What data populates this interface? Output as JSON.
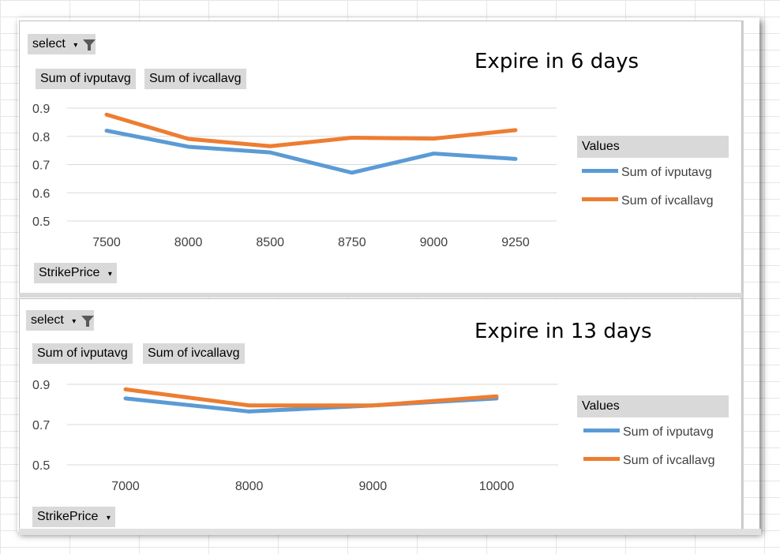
{
  "colors": {
    "series_put": "#5b9bd5",
    "series_call": "#ed7d31",
    "field_button_bg": "#d9d9d9"
  },
  "icons": {
    "filter": "filter-funnel-icon",
    "dropdown": "chevron-down-icon"
  },
  "charts": [
    {
      "select_label": "select",
      "series_button_put": "Sum of ivputavg",
      "series_button_call": "Sum of ivcallavg",
      "title": "Expire in 6 days",
      "axis_field": "StrikePrice",
      "legend_title": "Values",
      "legend_put": "Sum of ivputavg",
      "legend_call": "Sum of ivcallavg"
    },
    {
      "select_label": "select",
      "series_button_put": "Sum of ivputavg",
      "series_button_call": "Sum of ivcallavg",
      "title": "Expire in 13 days",
      "axis_field": "StrikePrice",
      "legend_title": "Values",
      "legend_put": "Sum of ivputavg",
      "legend_call": "Sum of ivcallavg"
    }
  ],
  "chart_data": [
    {
      "type": "line",
      "title": "Expire in 6 days",
      "xlabel": "StrikePrice",
      "ylabel": "",
      "categories": [
        "7500",
        "8000",
        "8500",
        "8750",
        "9000",
        "9250"
      ],
      "yticks": [
        "0.5",
        "0.6",
        "0.7",
        "0.8",
        "0.9"
      ],
      "ylim": [
        0.5,
        0.9
      ],
      "grid": true,
      "legend": "right",
      "series": [
        {
          "name": "Sum of ivputavg",
          "values": [
            0.82,
            0.763,
            0.743,
            0.671,
            0.739,
            0.72
          ]
        },
        {
          "name": "Sum of ivcallavg",
          "values": [
            0.877,
            0.791,
            0.765,
            0.795,
            0.792,
            0.822
          ]
        }
      ]
    },
    {
      "type": "line",
      "title": "Expire in 13 days",
      "xlabel": "StrikePrice",
      "ylabel": "",
      "categories": [
        "7000",
        "8000",
        "9000",
        "10000"
      ],
      "yticks": [
        "0.5",
        "0.7",
        "0.9"
      ],
      "ylim": [
        0.5,
        0.9
      ],
      "grid": true,
      "legend": "right",
      "series": [
        {
          "name": "Sum of ivputavg",
          "values": [
            0.83,
            0.765,
            0.795,
            0.83
          ]
        },
        {
          "name": "Sum of ivcallavg",
          "values": [
            0.875,
            0.795,
            0.795,
            0.84
          ]
        }
      ]
    }
  ]
}
